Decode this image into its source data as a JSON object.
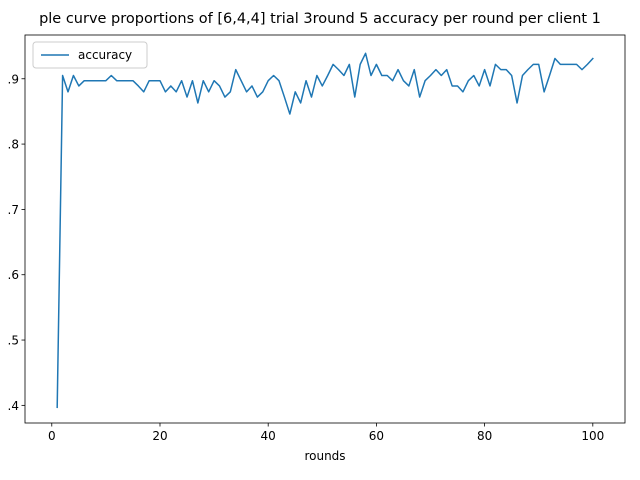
{
  "chart_data": {
    "type": "line",
    "title": "ple curve proportions of [6,4,4] trial 3round 5 accuracy per round per client 1",
    "xlabel": "rounds",
    "ylabel": "",
    "xlim": [
      -4.95,
      105.95
    ],
    "ylim": [
      0.373,
      0.967
    ],
    "xticks": [
      0,
      20,
      40,
      60,
      80,
      100
    ],
    "xtick_labels": [
      "0",
      "20",
      "40",
      "60",
      "80",
      "100"
    ],
    "yticks": [
      0.4,
      0.5,
      0.6,
      0.7,
      0.8,
      0.9
    ],
    "ytick_labels": "0.4,0.5,0.6,0.7,0.8,0.9",
    "ytick_labels_list": [
      ".4",
      ".5",
      ".6",
      ".7",
      ".8",
      ".9"
    ],
    "legend": {
      "position": "top-left",
      "entries": [
        "accuracy"
      ]
    },
    "grid": false,
    "line_color": "#1f77b4",
    "series": [
      {
        "name": "accuracy",
        "x": [
          1,
          2,
          3,
          4,
          5,
          6,
          7,
          8,
          9,
          10,
          11,
          12,
          13,
          14,
          15,
          16,
          17,
          18,
          19,
          20,
          21,
          22,
          23,
          24,
          25,
          26,
          27,
          28,
          29,
          30,
          31,
          32,
          33,
          34,
          35,
          36,
          37,
          38,
          39,
          40,
          41,
          42,
          43,
          44,
          45,
          46,
          47,
          48,
          49,
          50,
          51,
          52,
          53,
          54,
          55,
          56,
          57,
          58,
          59,
          60,
          61,
          62,
          63,
          64,
          65,
          66,
          67,
          68,
          69,
          70,
          71,
          72,
          73,
          74,
          75,
          76,
          77,
          78,
          79,
          80,
          81,
          82,
          83,
          84,
          85,
          86,
          87,
          88,
          89,
          90,
          91,
          92,
          93,
          94,
          95,
          96,
          97,
          98,
          99,
          100
        ],
        "values": [
          0.397,
          0.905,
          0.88,
          0.905,
          0.889,
          0.897,
          0.897,
          0.897,
          0.897,
          0.897,
          0.905,
          0.897,
          0.897,
          0.897,
          0.897,
          0.889,
          0.88,
          0.897,
          0.897,
          0.897,
          0.88,
          0.889,
          0.88,
          0.897,
          0.872,
          0.897,
          0.863,
          0.897,
          0.88,
          0.897,
          0.889,
          0.872,
          0.88,
          0.914,
          0.897,
          0.88,
          0.889,
          0.872,
          0.88,
          0.897,
          0.905,
          0.897,
          0.872,
          0.846,
          0.88,
          0.863,
          0.897,
          0.872,
          0.905,
          0.889,
          0.905,
          0.922,
          0.914,
          0.905,
          0.922,
          0.872,
          0.922,
          0.939,
          0.905,
          0.922,
          0.905,
          0.905,
          0.897,
          0.914,
          0.897,
          0.889,
          0.914,
          0.872,
          0.897,
          0.905,
          0.914,
          0.905,
          0.914,
          0.889,
          0.889,
          0.88,
          0.897,
          0.905,
          0.889,
          0.914,
          0.889,
          0.922,
          0.914,
          0.914,
          0.905,
          0.863,
          0.905,
          0.914,
          0.922,
          0.922,
          0.88,
          0.905,
          0.931,
          0.922,
          0.922,
          0.922,
          0.922,
          0.914,
          0.922,
          0.931
        ]
      }
    ]
  }
}
